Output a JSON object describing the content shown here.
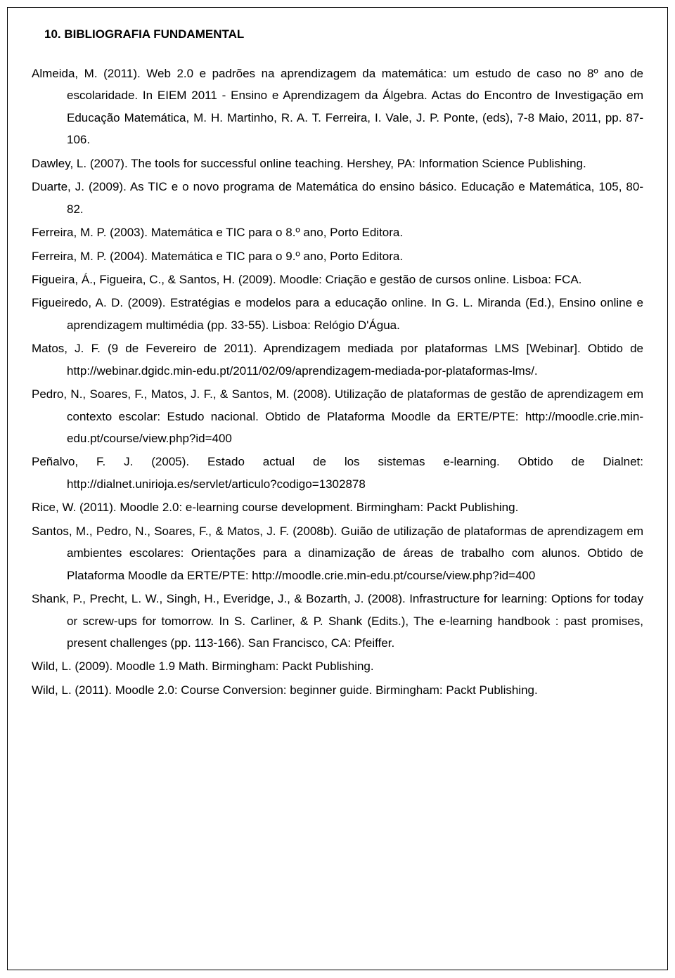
{
  "heading": "10. BIBLIOGRAFIA FUNDAMENTAL",
  "entries": [
    "Almeida, M. (2011). Web 2.0 e padrões na aprendizagem da matemática: um estudo de caso no 8º ano de escolaridade. In EIEM 2011 - Ensino e Aprendizagem da Álgebra. Actas do Encontro de Investigação em Educação Matemática, M. H. Martinho, R. A. T. Ferreira, I. Vale, J. P. Ponte, (eds), 7-8 Maio, 2011, pp. 87-106.",
    "Dawley, L. (2007). The tools for successful online teaching. Hershey, PA: Information Science Publishing.",
    "Duarte, J. (2009). As TIC e o novo programa de Matemática do ensino básico. Educação e Matemática, 105, 80-82.",
    "Ferreira, M. P. (2003). Matemática e TIC para o 8.º ano, Porto Editora.",
    "Ferreira, M. P. (2004).  Matemática e TIC para o 9.º ano, Porto Editora.",
    "Figueira, Á., Figueira, C., & Santos, H. (2009). Moodle: Criação e gestão de cursos online. Lisboa: FCA.",
    "Figueiredo, A. D. (2009). Estratégias e modelos para a educação online. In G. L. Miranda (Ed.), Ensino online e aprendizagem multimédia (pp. 33-55). Lisboa: Relógio D'Água.",
    "Matos, J. F. (9 de Fevereiro de 2011). Aprendizagem mediada por plataformas LMS [Webinar]. Obtido de http://webinar.dgidc.min-edu.pt/2011/02/09/aprendizagem-mediada-por-plataformas-lms/.",
    "Pedro, N., Soares, F., Matos, J. F., & Santos, M. (2008). Utilização de plataformas de gestão de aprendizagem em contexto escolar: Estudo nacional. Obtido de Plataforma Moodle da ERTE/PTE: http://moodle.crie.min-edu.pt/course/view.php?id=400",
    "Peñalvo, F. J. (2005). Estado actual de los sistemas e-learning. Obtido de Dialnet: http://dialnet.unirioja.es/servlet/articulo?codigo=1302878",
    "Rice, W. (2011). Moodle 2.0: e-learning course development. Birmingham: Packt Publishing.",
    "Santos, M., Pedro, N., Soares, F., & Matos, J. F. (2008b). Guião de utilização de plataformas de aprendizagem em ambientes escolares: Orientações para a dinamização de áreas de trabalho com alunos. Obtido de Plataforma Moodle da ERTE/PTE: http://moodle.crie.min-edu.pt/course/view.php?id=400",
    "Shank, P., Precht, L. W., Singh, H., Everidge, J., & Bozarth, J. (2008). Infrastructure for learning: Options for today or screw-ups for tomorrow. In S. Carliner, & P. Shank (Edits.), The e-learning handbook : past promises, present challenges (pp. 113-166). San Francisco, CA: Pfeiffer.",
    "Wild, L. (2009). Moodle 1.9 Math. Birmingham: Packt Publishing.",
    "Wild, L. (2011). Moodle 2.0: Course Conversion: beginner guide. Birmingham: Packt Publishing."
  ]
}
